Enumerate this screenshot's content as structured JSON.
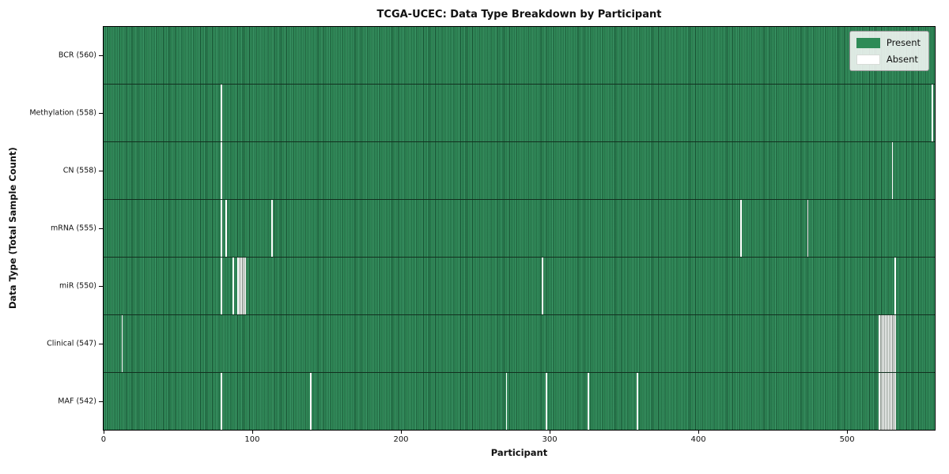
{
  "figure": {
    "title": "TCGA-UCEC: Data Type Breakdown by Participant"
  },
  "chart_data": {
    "type": "heatmap",
    "title": "TCGA-UCEC: Data Type Breakdown by Participant",
    "xlabel": "Participant",
    "ylabel": "Data Type (Total Sample Count)",
    "x_ticks": [
      0,
      100,
      200,
      300,
      400,
      500
    ],
    "x_range": [
      0,
      560
    ],
    "n_participants": 560,
    "grid": false,
    "cell_states": [
      "Present",
      "Absent"
    ],
    "legend": {
      "position": "upper right",
      "entries": [
        {
          "label": "Present",
          "color": "#2e8b57"
        },
        {
          "label": "Absent",
          "color": "#ffffff"
        }
      ]
    },
    "rows": [
      {
        "label": "BCR (560)",
        "data_type": "BCR",
        "present_count": 560,
        "absent_participants": []
      },
      {
        "label": "Methylation (558)",
        "data_type": "Methylation",
        "present_count": 558,
        "absent_participants": [
          79,
          558
        ]
      },
      {
        "label": "CN (558)",
        "data_type": "CN",
        "present_count": 558,
        "absent_participants": [
          79,
          531
        ]
      },
      {
        "label": "mRNA (555)",
        "data_type": "mRNA",
        "present_count": 555,
        "absent_participants": [
          79,
          82,
          113,
          429,
          474
        ]
      },
      {
        "label": "miR (550)",
        "data_type": "miR",
        "present_count": 550,
        "absent_participants": [
          79,
          87,
          90,
          91,
          92,
          93,
          94,
          95,
          295,
          533
        ]
      },
      {
        "label": "Clinical (547)",
        "data_type": "Clinical",
        "present_count": 547,
        "absent_participants": [
          12,
          522,
          523,
          524,
          525,
          526,
          527,
          528,
          529,
          530,
          531,
          532,
          533
        ]
      },
      {
        "label": "MAF (542)",
        "data_type": "MAF",
        "present_count": 542,
        "absent_participants": [
          79,
          139,
          271,
          298,
          326,
          359,
          522,
          523,
          524,
          525,
          526,
          527,
          528,
          529,
          530,
          531,
          532,
          533
        ]
      }
    ]
  },
  "colors": {
    "present_green": "#2e8b57",
    "present_green_light": "#3d9a69",
    "bar_edge_dark": "#0f2d1c",
    "absent_white": "#ffffff",
    "axis_black": "#000000",
    "legend_border": "#9a9a9a"
  }
}
